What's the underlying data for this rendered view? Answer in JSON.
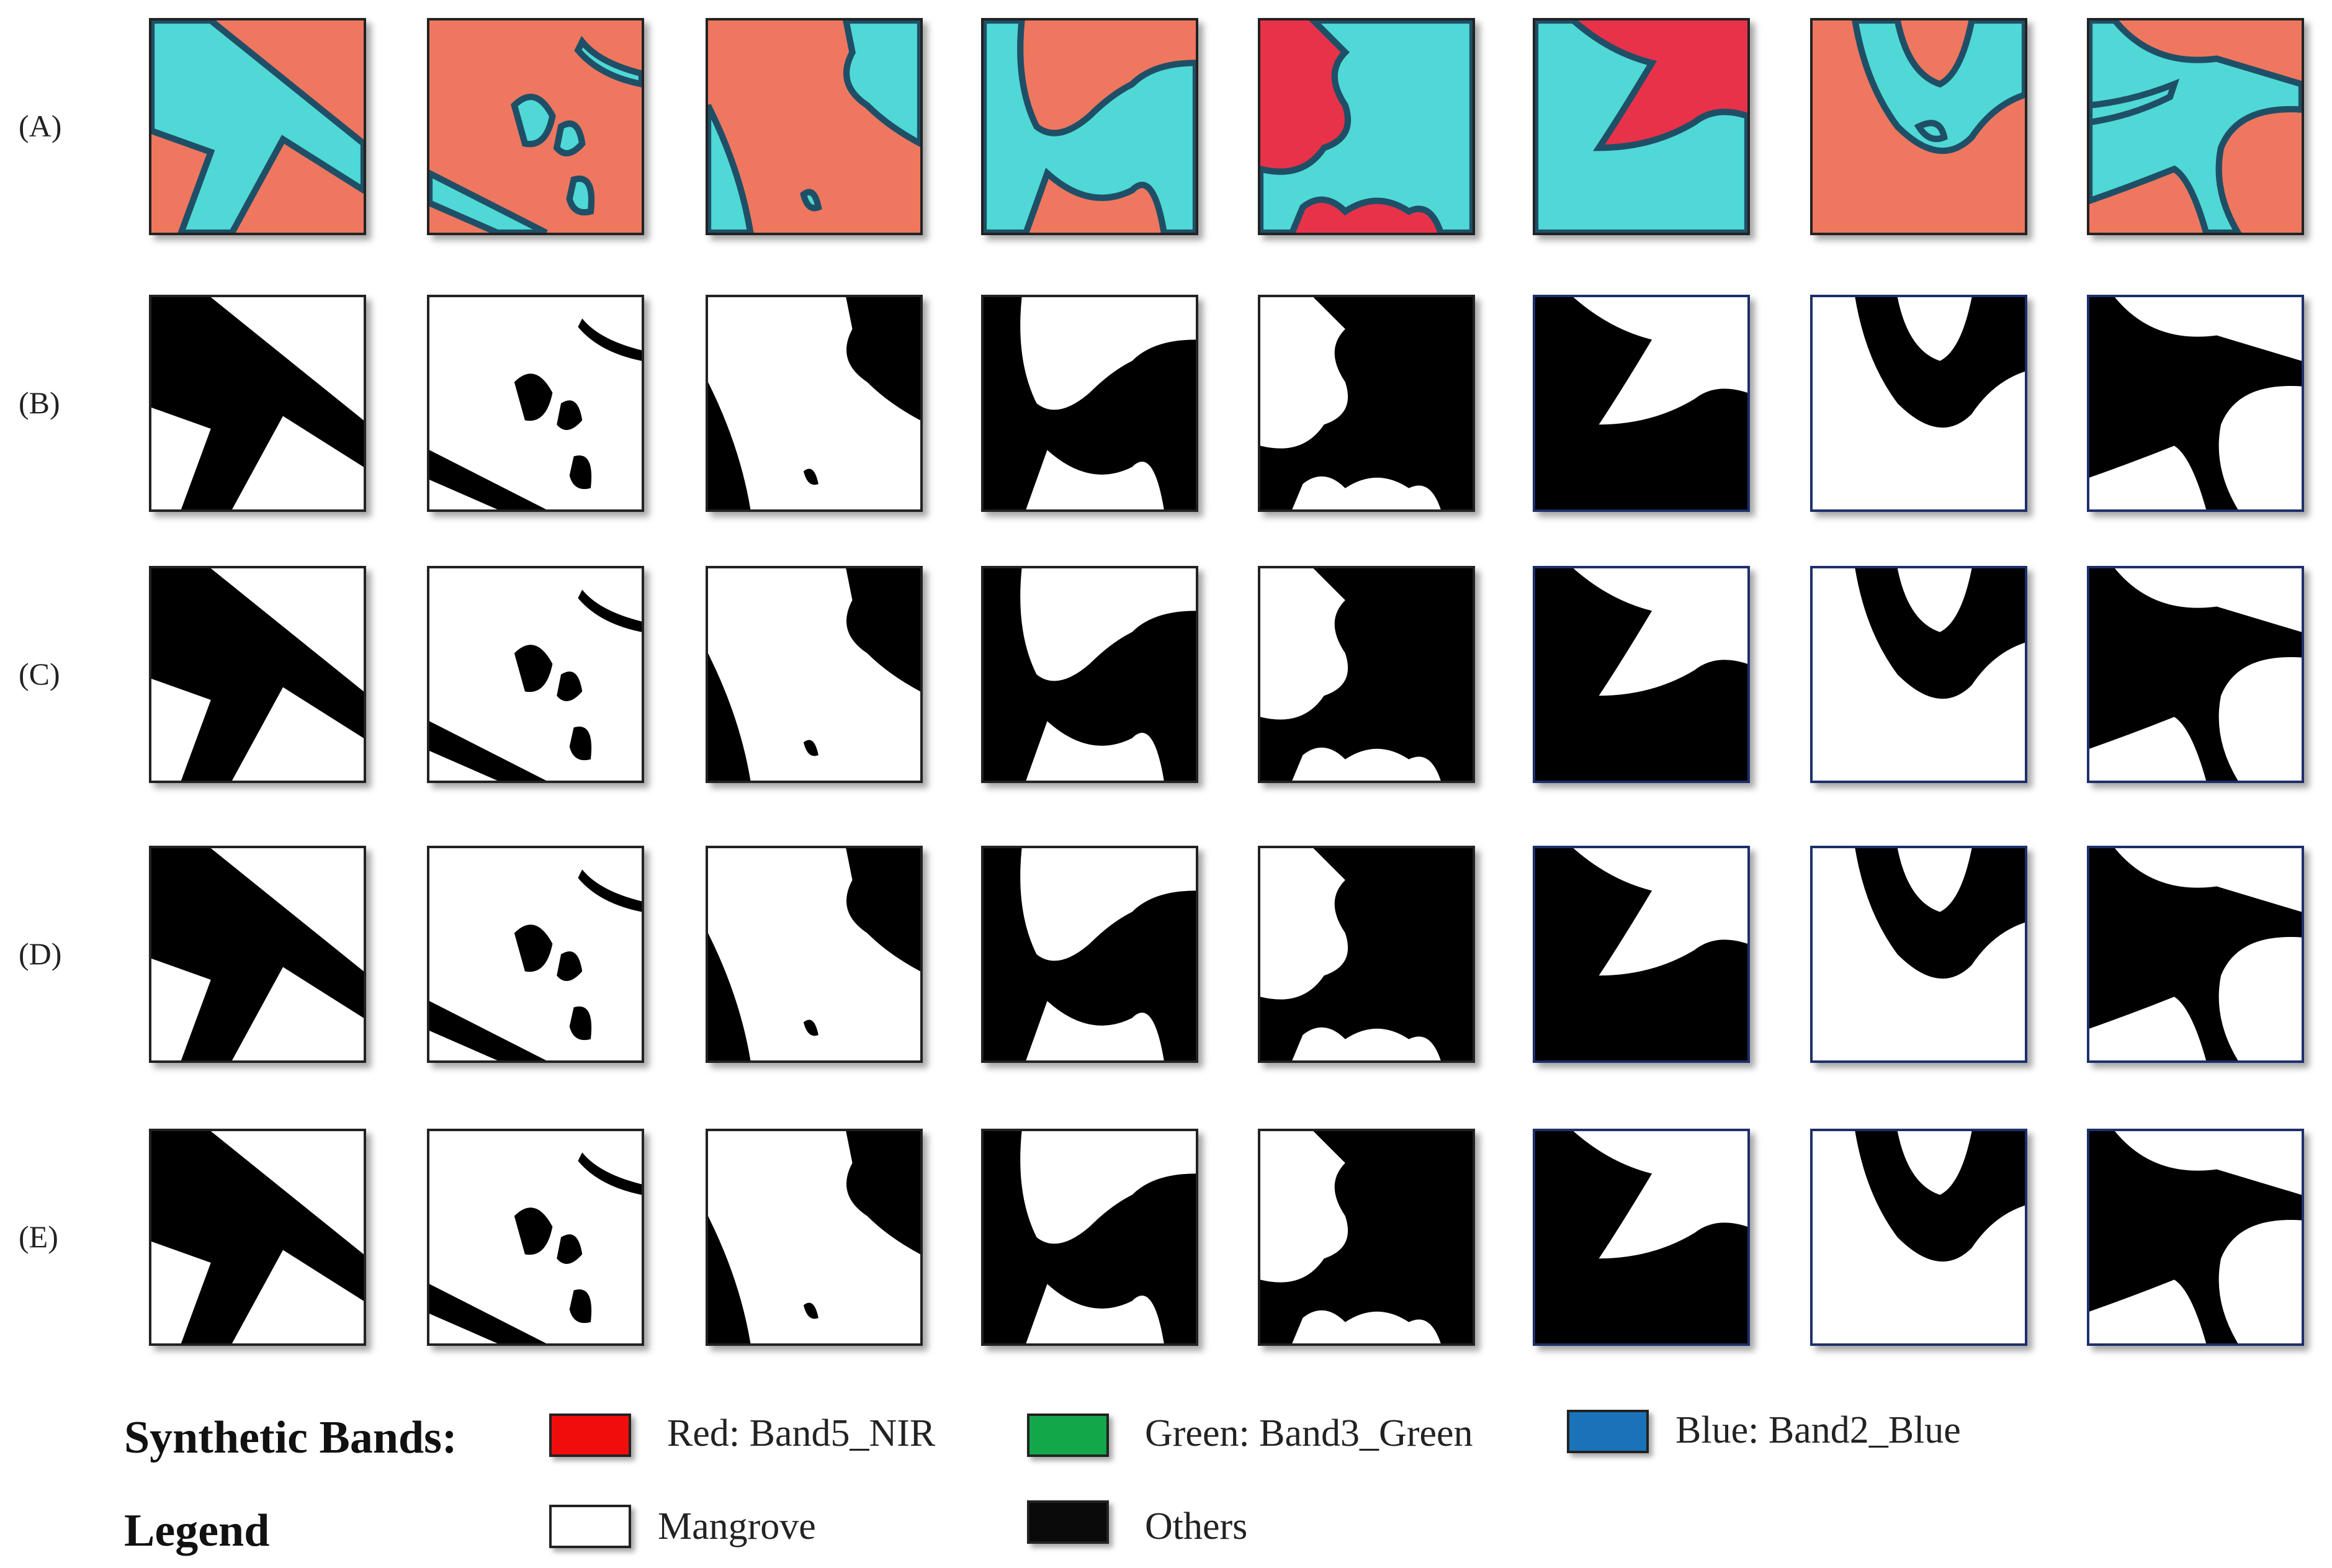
{
  "rows": [
    "(A)",
    "(B)",
    "(C)",
    "(D)",
    "(E)"
  ],
  "legend": {
    "bands_title": "Synthetic Bands:",
    "bands": [
      "Red: Band5_NIR",
      "Green: Band3_Green",
      "Blue: Band2_Blue"
    ],
    "legend_title": "Legend",
    "classes": [
      "Mangrove",
      "Others"
    ]
  }
}
